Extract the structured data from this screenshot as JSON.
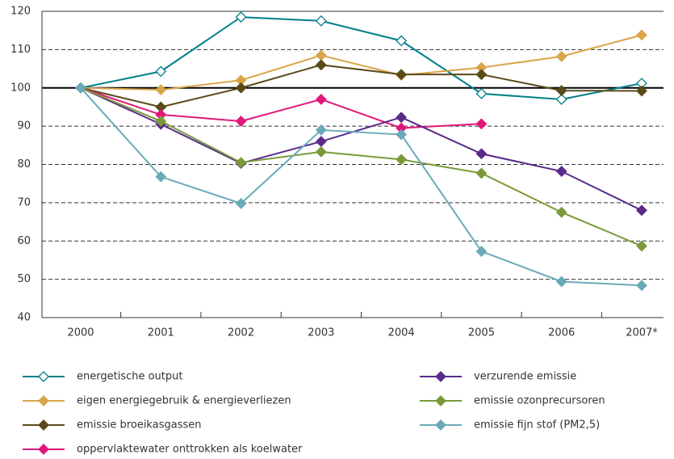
{
  "chart_data": {
    "type": "line",
    "categories": [
      "2000",
      "2001",
      "2002",
      "2003",
      "2004",
      "2005",
      "2006",
      "2007*"
    ],
    "ylim": [
      40,
      120
    ],
    "yticks": [
      40,
      50,
      60,
      70,
      80,
      90,
      100,
      110,
      120
    ],
    "grid": true,
    "series": [
      {
        "name": "energetische output",
        "color": "#00808a",
        "hollow": true,
        "values": [
          100,
          104.3,
          118.5,
          117.5,
          112.3,
          98.5,
          97,
          101.2
        ]
      },
      {
        "name": "eigen energiegebruik & energieverliezen",
        "color": "#d9a54a",
        "values": [
          100,
          99.5,
          102,
          108.5,
          103.3,
          105.3,
          108.2,
          113.8
        ]
      },
      {
        "name": "emissie broeikasgassen",
        "color": "#5a4a1a",
        "values": [
          100,
          95,
          100,
          106,
          103.5,
          103.5,
          99.3,
          99.2
        ]
      },
      {
        "name": "oppervlaktewater onttrokken als koelwater",
        "color": "#e0187a",
        "values": [
          100,
          93,
          91.3,
          97,
          89.5,
          90.6,
          null,
          null
        ]
      },
      {
        "name": "verzurende emissie",
        "color": "#5a2a8a",
        "values": [
          100,
          90.5,
          80.3,
          86,
          92.3,
          82.8,
          78.2,
          68
        ]
      },
      {
        "name": "emissie ozonprecursoren",
        "color": "#7a9a3a",
        "values": [
          100,
          91.3,
          80.5,
          83.3,
          81.3,
          77.7,
          67.5,
          58.7
        ]
      },
      {
        "name": "emissie fijn stof (PM2,5)",
        "color": "#6aaab8",
        "values": [
          100,
          76.8,
          69.8,
          89,
          87.8,
          57.3,
          49.4,
          48.4
        ]
      }
    ]
  }
}
